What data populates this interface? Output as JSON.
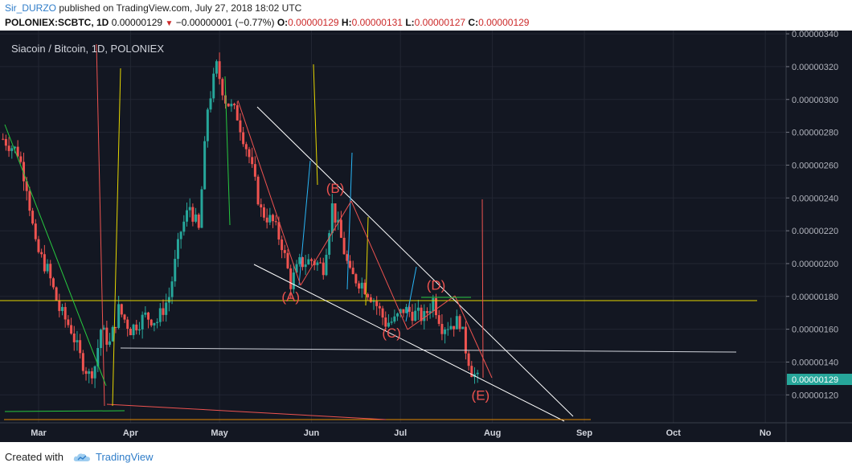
{
  "header": {
    "author": "Sir_DURZO",
    "published_text": "published on TradingView.com, July 27, 2018 18:02 UTC",
    "symbol": "POLONIEX:SCBTC, 1D",
    "last": "0.00000129",
    "change": "−0.00000001 (−0.77%)",
    "o_label": "O:",
    "o_value": "0.00000129",
    "h_label": "H:",
    "h_value": "0.00000131",
    "l_label": "L:",
    "l_value": "0.00000127",
    "c_label": "C:",
    "c_value": "0.00000129"
  },
  "footer": {
    "created_with": "Created with",
    "brand": "TradingView"
  },
  "colors": {
    "background": "#131722",
    "up": "#26a69a",
    "down": "#ef5350",
    "text_red": "#cc2a2a",
    "brand_blue": "#2f7dc9"
  },
  "chart_data": {
    "type": "candlestick",
    "title": "Siacoin / Bitcoin, 1D, POLONIEX",
    "x_tick_labels": [
      "Mar",
      "Apr",
      "May",
      "Jun",
      "Jul",
      "Aug",
      "Sep",
      "Oct",
      "No"
    ],
    "y_tick_values": [
      "0.00000340",
      "0.00000320",
      "0.00000300",
      "0.00000280",
      "0.00000260",
      "0.00000240",
      "0.00000220",
      "0.00000200",
      "0.00000180",
      "0.00000160",
      "0.00000140",
      "0.00000120"
    ],
    "ylim": [
      1.03e-06,
      3.42e-06
    ],
    "xlim": [
      "2018-02-16",
      "2018-11-08"
    ],
    "last_price_label": "0.00000129",
    "grid": true,
    "series": [
      {
        "x": "2018-02-17",
        "y": 2.76e-06
      },
      {
        "x": "2018-02-22",
        "y": 2.68e-06
      },
      {
        "x": "2018-02-25",
        "y": 2.48e-06
      },
      {
        "x": "2018-02-28",
        "y": 2.1e-06
      },
      {
        "x": "2018-03-04",
        "y": 1.96e-06
      },
      {
        "x": "2018-03-08",
        "y": 1.72e-06
      },
      {
        "x": "2018-03-12",
        "y": 1.6e-06
      },
      {
        "x": "2018-03-15",
        "y": 1.43e-06
      },
      {
        "x": "2018-03-18",
        "y": 1.32e-06
      },
      {
        "x": "2018-03-20",
        "y": 1.38e-06
      },
      {
        "x": "2018-03-22",
        "y": 1.6e-06
      },
      {
        "x": "2018-03-25",
        "y": 1.51e-06
      },
      {
        "x": "2018-03-28",
        "y": 1.72e-06
      },
      {
        "x": "2018-04-01",
        "y": 1.6e-06
      },
      {
        "x": "2018-04-06",
        "y": 1.68e-06
      },
      {
        "x": "2018-04-10",
        "y": 1.65e-06
      },
      {
        "x": "2018-04-14",
        "y": 1.8e-06
      },
      {
        "x": "2018-04-18",
        "y": 2.2e-06
      },
      {
        "x": "2018-04-21",
        "y": 2.35e-06
      },
      {
        "x": "2018-04-24",
        "y": 2.2e-06
      },
      {
        "x": "2018-04-27",
        "y": 2.95e-06
      },
      {
        "x": "2018-04-30",
        "y": 3.2e-06
      },
      {
        "x": "2018-05-03",
        "y": 3e-06
      },
      {
        "x": "2018-05-07",
        "y": 2.9e-06
      },
      {
        "x": "2018-05-11",
        "y": 2.65e-06
      },
      {
        "x": "2018-05-15",
        "y": 2.32e-06
      },
      {
        "x": "2018-05-19",
        "y": 2.25e-06
      },
      {
        "x": "2018-05-22",
        "y": 2.12e-06
      },
      {
        "x": "2018-05-25",
        "y": 1.88e-06
      },
      {
        "x": "2018-05-28",
        "y": 2e-06
      },
      {
        "x": "2018-06-01",
        "y": 2.02e-06
      },
      {
        "x": "2018-06-05",
        "y": 1.98e-06
      },
      {
        "x": "2018-06-08",
        "y": 2.35e-06
      },
      {
        "x": "2018-06-11",
        "y": 2.15e-06
      },
      {
        "x": "2018-06-14",
        "y": 1.93e-06
      },
      {
        "x": "2018-06-18",
        "y": 1.88e-06
      },
      {
        "x": "2018-06-22",
        "y": 1.78e-06
      },
      {
        "x": "2018-06-26",
        "y": 1.64e-06
      },
      {
        "x": "2018-06-29",
        "y": 1.65e-06
      },
      {
        "x": "2018-07-02",
        "y": 1.72e-06
      },
      {
        "x": "2018-07-05",
        "y": 1.7e-06
      },
      {
        "x": "2018-07-09",
        "y": 1.67e-06
      },
      {
        "x": "2018-07-12",
        "y": 1.78e-06
      },
      {
        "x": "2018-07-15",
        "y": 1.62e-06
      },
      {
        "x": "2018-07-18",
        "y": 1.63e-06
      },
      {
        "x": "2018-07-21",
        "y": 1.65e-06
      },
      {
        "x": "2018-07-23",
        "y": 1.48e-06
      },
      {
        "x": "2018-07-25",
        "y": 1.35e-06
      },
      {
        "x": "2018-07-27",
        "y": 1.29e-06
      }
    ],
    "annotations": [
      {
        "text": "(A)",
        "x": "2018-05-25",
        "y": 1.77e-06,
        "color": "#ef5350"
      },
      {
        "text": "(B)",
        "x": "2018-06-09",
        "y": 2.43e-06,
        "color": "#ef5350"
      },
      {
        "text": "(C)",
        "x": "2018-06-28",
        "y": 1.55e-06,
        "color": "#ef5350"
      },
      {
        "text": "(D)",
        "x": "2018-07-13",
        "y": 1.84e-06,
        "color": "#ef5350"
      },
      {
        "text": "(E)",
        "x": "2018-07-28",
        "y": 1.17e-06,
        "color": "#ef5350"
      }
    ]
  }
}
